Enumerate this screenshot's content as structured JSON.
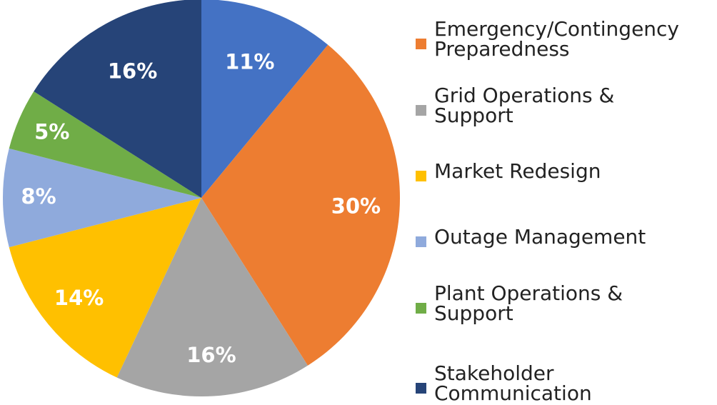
{
  "chart_data": {
    "type": "pie",
    "categories": [
      null,
      "Emergency/Contingency Preparedness",
      "Grid Operations & Support",
      "Market Redesign",
      "Outage Management",
      "Plant Operations & Support",
      "Stakeholder Communication"
    ],
    "values": [
      11,
      30,
      16,
      14,
      8,
      5,
      16
    ],
    "value_labels": [
      "11%",
      "30%",
      "16%",
      "14%",
      "8%",
      "5%",
      "16%"
    ],
    "colors": [
      "#4472c4",
      "#ed7d31",
      "#a5a5a5",
      "#ffc000",
      "#8faadc",
      "#70ad47",
      "#264478"
    ]
  }
}
